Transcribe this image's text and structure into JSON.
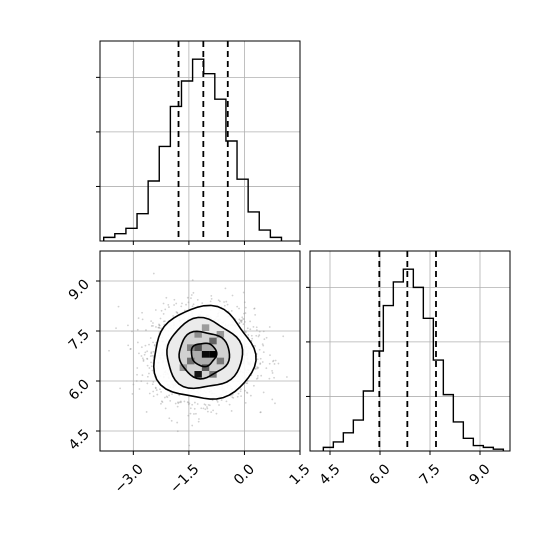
{
  "chart_data": [
    {
      "type": "histogram",
      "panel": "marginal-x",
      "parameter_index": 0,
      "bin_edges": [
        -3.8,
        -3.5,
        -3.2,
        -2.9,
        -2.6,
        -2.3,
        -2.0,
        -1.7,
        -1.4,
        -1.1,
        -0.8,
        -0.5,
        -0.2,
        0.1,
        0.4,
        0.7,
        1.0
      ],
      "counts": [
        0.02,
        0.04,
        0.07,
        0.15,
        0.33,
        0.52,
        0.74,
        0.88,
        1.0,
        0.92,
        0.78,
        0.55,
        0.34,
        0.16,
        0.06,
        0.02
      ],
      "quantiles": [
        -1.78,
        -1.11,
        -0.45
      ],
      "xlim": [
        -3.9,
        1.5
      ],
      "xticks": [
        -3.0,
        -1.5,
        0.0,
        1.5
      ],
      "grid": true
    },
    {
      "type": "histogram",
      "panel": "marginal-y",
      "parameter_index": 1,
      "bin_edges": [
        4.3,
        4.6,
        4.9,
        5.2,
        5.5,
        5.8,
        6.1,
        6.4,
        6.7,
        7.0,
        7.3,
        7.6,
        7.9,
        8.2,
        8.5,
        8.8,
        9.1,
        9.4,
        9.7
      ],
      "counts": [
        0.02,
        0.05,
        0.1,
        0.17,
        0.33,
        0.55,
        0.8,
        0.93,
        1.0,
        0.9,
        0.73,
        0.5,
        0.31,
        0.16,
        0.07,
        0.03,
        0.02,
        0.01
      ],
      "quantiles": [
        5.98,
        6.82,
        7.68
      ],
      "xlim": [
        3.9,
        9.9
      ],
      "xticks": [
        4.5,
        6.0,
        7.5,
        9.0
      ],
      "grid": true
    },
    {
      "type": "scatter-density",
      "panel": "joint",
      "x_param": 0,
      "y_param": 1,
      "xlim": [
        -3.9,
        1.5
      ],
      "ylim": [
        3.9,
        9.9
      ],
      "xticks": [
        -3.0,
        -1.5,
        0.0,
        1.5
      ],
      "yticks": [
        4.5,
        6.0,
        7.5,
        9.0
      ],
      "center": [
        -1.1,
        6.8
      ],
      "std": [
        0.68,
        0.68
      ],
      "contour_sigma_levels": [
        0.5,
        1.0,
        1.5,
        2.0
      ],
      "density_bins": [
        {
          "x": -1.25,
          "y": 6.2,
          "v": 0.9
        },
        {
          "x": -1.05,
          "y": 6.8,
          "v": 0.95
        },
        {
          "x": -0.85,
          "y": 6.8,
          "v": 1.0
        },
        {
          "x": -1.25,
          "y": 7.0,
          "v": 0.6
        },
        {
          "x": -0.85,
          "y": 7.2,
          "v": 0.5
        },
        {
          "x": -1.45,
          "y": 6.6,
          "v": 0.45
        },
        {
          "x": -1.05,
          "y": 6.4,
          "v": 0.55
        },
        {
          "x": -0.65,
          "y": 6.6,
          "v": 0.4
        },
        {
          "x": -1.25,
          "y": 7.4,
          "v": 0.3
        },
        {
          "x": -1.45,
          "y": 7.0,
          "v": 0.35
        },
        {
          "x": -0.85,
          "y": 6.2,
          "v": 0.4
        },
        {
          "x": -1.05,
          "y": 7.6,
          "v": 0.22
        },
        {
          "x": -1.65,
          "y": 6.4,
          "v": 0.25
        },
        {
          "x": -0.65,
          "y": 7.4,
          "v": 0.25
        }
      ],
      "grid": true
    }
  ]
}
